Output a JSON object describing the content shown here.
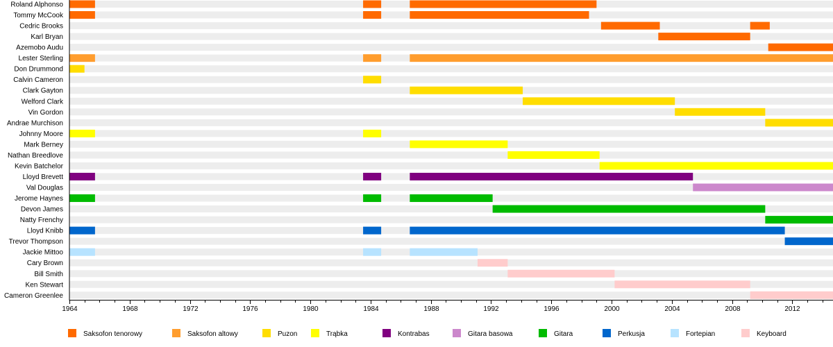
{
  "chart_data": {
    "type": "timeline",
    "xlim": [
      1964,
      2014.7
    ],
    "x_ticks": [
      "1964",
      "1968",
      "1972",
      "1976",
      "1980",
      "1984",
      "1988",
      "1992",
      "1996",
      "2000",
      "2004",
      "2008",
      "2012"
    ],
    "instruments": [
      {
        "key": "ts",
        "label": "Saksofon tenorowy",
        "color": "#FF6A00"
      },
      {
        "key": "as",
        "label": "Saksofon altowy",
        "color": "#FF9D2E"
      },
      {
        "key": "tb",
        "label": "Puzon",
        "color": "#FFDD00"
      },
      {
        "key": "tp",
        "label": "Trąbka",
        "color": "#FFFF00"
      },
      {
        "key": "db",
        "label": "Kontrabas",
        "color": "#800080"
      },
      {
        "key": "bg",
        "label": "Gitara basowa",
        "color": "#CC88CC"
      },
      {
        "key": "gt",
        "label": "Gitara",
        "color": "#00BB00"
      },
      {
        "key": "dr",
        "label": "Perkusja",
        "color": "#0066CC"
      },
      {
        "key": "pn",
        "label": "Fortepian",
        "color": "#B7E3FF"
      },
      {
        "key": "kb",
        "label": "Keyboard",
        "color": "#FFCCCC"
      }
    ],
    "members": [
      {
        "name": "Roland Alphonso",
        "inst": "ts",
        "periods": [
          [
            1964,
            1965.7
          ],
          [
            1983.5,
            1984.7
          ],
          [
            1986.6,
            1999.0
          ]
        ]
      },
      {
        "name": "Tommy McCook",
        "inst": "ts",
        "periods": [
          [
            1964,
            1965.7
          ],
          [
            1983.5,
            1984.7
          ],
          [
            1986.6,
            1998.5
          ]
        ]
      },
      {
        "name": "Cedric Brooks",
        "inst": "ts",
        "periods": [
          [
            1999.3,
            2003.2
          ],
          [
            2009.2,
            2010.5
          ]
        ]
      },
      {
        "name": "Karl Bryan",
        "inst": "ts",
        "periods": [
          [
            2003.1,
            2009.2
          ]
        ]
      },
      {
        "name": "Azemobo Audu",
        "inst": "ts",
        "periods": [
          [
            2010.4,
            2014.7
          ]
        ]
      },
      {
        "name": "Lester Sterling",
        "inst": "as",
        "periods": [
          [
            1964,
            1965.7
          ],
          [
            1983.5,
            1984.7
          ],
          [
            1986.6,
            2014.7
          ]
        ]
      },
      {
        "name": "Don Drummond",
        "inst": "tb",
        "periods": [
          [
            1964,
            1965
          ]
        ]
      },
      {
        "name": "Calvin Cameron",
        "inst": "tb",
        "periods": [
          [
            1983.5,
            1984.7
          ]
        ]
      },
      {
        "name": "Clark Gayton",
        "inst": "tb",
        "periods": [
          [
            1986.6,
            1994.1
          ]
        ]
      },
      {
        "name": "Welford Clark",
        "inst": "tb",
        "periods": [
          [
            1994.1,
            2004.2
          ]
        ]
      },
      {
        "name": "Vin Gordon",
        "inst": "tb",
        "periods": [
          [
            2004.2,
            2010.2
          ]
        ]
      },
      {
        "name": "Andrae Murchison",
        "inst": "tb",
        "periods": [
          [
            2010.2,
            2014.7
          ]
        ]
      },
      {
        "name": "Johnny Moore",
        "inst": "tp",
        "periods": [
          [
            1964,
            1965.7
          ],
          [
            1983.5,
            1984.7
          ]
        ]
      },
      {
        "name": "Mark Berney",
        "inst": "tp",
        "periods": [
          [
            1986.6,
            1993.1
          ]
        ]
      },
      {
        "name": "Nathan Breedlove",
        "inst": "tp",
        "periods": [
          [
            1993.1,
            1999.2
          ]
        ]
      },
      {
        "name": "Kevin Batchelor",
        "inst": "tp",
        "periods": [
          [
            1999.2,
            2014.7
          ]
        ]
      },
      {
        "name": "Lloyd Brevett",
        "inst": "db",
        "periods": [
          [
            1964,
            1965.7
          ],
          [
            1983.5,
            1984.7
          ],
          [
            1986.6,
            2005.4
          ]
        ]
      },
      {
        "name": "Val Douglas",
        "inst": "bg",
        "periods": [
          [
            2005.4,
            2014.7
          ]
        ]
      },
      {
        "name": "Jerome Haynes",
        "inst": "gt",
        "periods": [
          [
            1964,
            1965.7
          ],
          [
            1983.5,
            1984.7
          ],
          [
            1986.6,
            1992.1
          ]
        ]
      },
      {
        "name": "Devon James",
        "inst": "gt",
        "periods": [
          [
            1992.1,
            2010.2
          ]
        ]
      },
      {
        "name": "Natty Frenchy",
        "inst": "gt",
        "periods": [
          [
            2010.2,
            2014.7
          ]
        ]
      },
      {
        "name": "Lloyd Knibb",
        "inst": "dr",
        "periods": [
          [
            1964,
            1965.7
          ],
          [
            1983.5,
            1984.7
          ],
          [
            1986.6,
            2011.5
          ]
        ]
      },
      {
        "name": "Trevor Thompson",
        "inst": "dr",
        "periods": [
          [
            2011.5,
            2014.7
          ]
        ]
      },
      {
        "name": "Jackie Mittoo",
        "inst": "pn",
        "periods": [
          [
            1964,
            1965.7
          ],
          [
            1983.5,
            1984.7
          ],
          [
            1986.6,
            1991.1
          ]
        ]
      },
      {
        "name": "Cary Brown",
        "inst": "kb",
        "periods": [
          [
            1991.1,
            1993.1
          ]
        ]
      },
      {
        "name": "Bill Smith",
        "inst": "kb",
        "periods": [
          [
            1993.1,
            2000.2
          ]
        ]
      },
      {
        "name": "Ken Stewart",
        "inst": "kb",
        "periods": [
          [
            2000.2,
            2009.2
          ]
        ]
      },
      {
        "name": "Cameron Greenlee",
        "inst": "kb",
        "periods": [
          [
            2009.2,
            2014.7
          ]
        ]
      }
    ]
  }
}
